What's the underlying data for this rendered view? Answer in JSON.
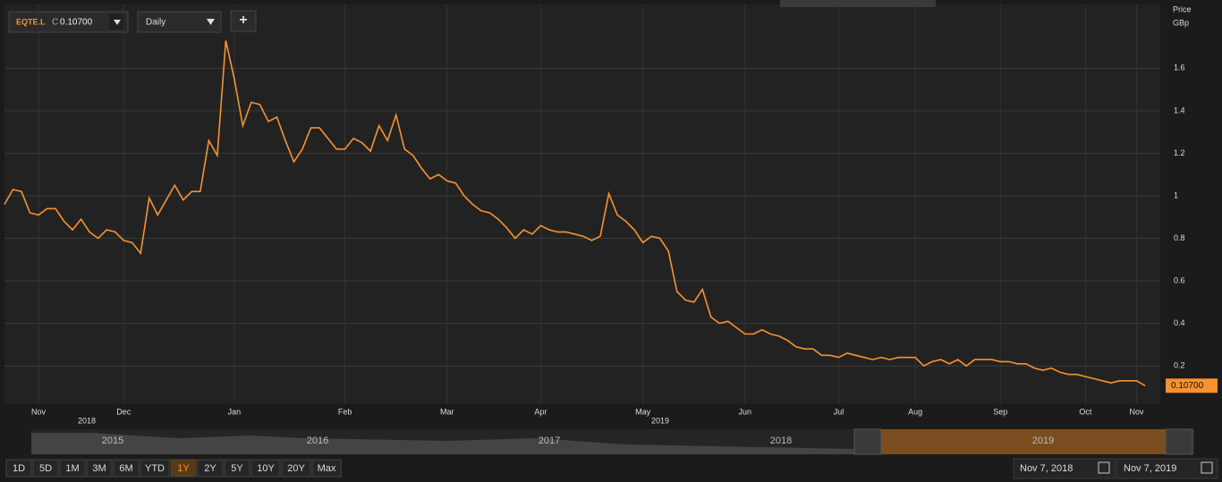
{
  "toolbar": {
    "ticker": "EQTE.L",
    "close_prefix": "C",
    "close": "0.10700",
    "interval": "Daily",
    "add": "+"
  },
  "chart_data": {
    "type": "line",
    "y_axis_label": [
      "Price",
      "GBp"
    ],
    "categories": [
      null,
      null,
      null,
      null,
      "Nov",
      null,
      null,
      null,
      null,
      null,
      null,
      null,
      null,
      null,
      "Dec",
      null,
      null,
      null,
      null,
      null,
      null,
      null,
      null,
      null,
      null,
      null,
      null,
      "Jan",
      null,
      null,
      null,
      null,
      null,
      null,
      null,
      null,
      null,
      null,
      null,
      null,
      "Feb",
      null,
      null,
      null,
      null,
      null,
      null,
      null,
      null,
      null,
      null,
      null,
      "Mar",
      null,
      null,
      null,
      null,
      null,
      null,
      null,
      null,
      null,
      null,
      "Apr",
      null,
      null,
      null,
      null,
      null,
      null,
      null,
      null,
      null,
      null,
      null,
      "May",
      null,
      null,
      null,
      null,
      null,
      null,
      null,
      null,
      null,
      null,
      null,
      "Jun",
      null,
      null,
      null,
      null,
      null,
      null,
      null,
      null,
      null,
      null,
      "Jul",
      null,
      null,
      null,
      null,
      null,
      null,
      null,
      null,
      "Aug",
      null,
      null,
      null,
      null,
      null,
      null,
      null,
      null,
      null,
      "Sep",
      null,
      null,
      null,
      null,
      null,
      null,
      null,
      null,
      null,
      "Oct",
      null,
      null,
      null,
      null,
      null,
      "Nov",
      null
    ],
    "year_labels": [
      "2018",
      "2019"
    ],
    "series": [
      {
        "color": "#f7922f",
        "values": [
          0.96,
          1.03,
          1.02,
          0.92,
          0.91,
          0.94,
          0.94,
          0.88,
          0.84,
          0.89,
          0.83,
          0.8,
          0.84,
          0.83,
          0.79,
          0.78,
          0.73,
          0.99,
          0.91,
          0.98,
          1.05,
          0.98,
          1.02,
          1.02,
          1.26,
          1.19,
          1.73,
          1.55,
          1.33,
          1.44,
          1.43,
          1.35,
          1.37,
          1.26,
          1.16,
          1.22,
          1.32,
          1.32,
          1.27,
          1.22,
          1.22,
          1.27,
          1.25,
          1.21,
          1.33,
          1.26,
          1.38,
          1.22,
          1.19,
          1.13,
          1.08,
          1.1,
          1.07,
          1.06,
          1.0,
          0.96,
          0.93,
          0.92,
          0.89,
          0.85,
          0.8,
          0.84,
          0.82,
          0.86,
          0.84,
          0.83,
          0.83,
          0.82,
          0.81,
          0.79,
          0.81,
          1.01,
          0.91,
          0.88,
          0.84,
          0.78,
          0.81,
          0.8,
          0.74,
          0.55,
          0.51,
          0.5,
          0.56,
          0.43,
          0.4,
          0.41,
          0.38,
          0.35,
          0.35,
          0.37,
          0.35,
          0.34,
          0.32,
          0.29,
          0.28,
          0.28,
          0.25,
          0.25,
          0.24,
          0.26,
          0.25,
          0.24,
          0.23,
          0.24,
          0.23,
          0.24,
          0.24,
          0.24,
          0.2,
          0.22,
          0.23,
          0.21,
          0.23,
          0.2,
          0.23,
          0.23,
          0.23,
          0.22,
          0.22,
          0.21,
          0.21,
          0.19,
          0.18,
          0.19,
          0.17,
          0.16,
          0.16,
          0.15,
          0.14,
          0.13,
          0.12,
          0.13,
          0.13,
          0.13,
          0.107
        ]
      }
    ],
    "last_price_label": "0.10700",
    "ylim": [
      0.02,
      1.9
    ],
    "yticks": [
      0.2,
      0.4,
      0.6,
      0.8,
      1.0,
      1.2,
      1.4,
      1.6
    ],
    "grid": true
  },
  "navigator": {
    "years": [
      "2015",
      "2016",
      "2017",
      "2018",
      "2019"
    ]
  },
  "range_buttons": [
    {
      "label": "1D"
    },
    {
      "label": "5D"
    },
    {
      "label": "1M"
    },
    {
      "label": "3M"
    },
    {
      "label": "6M"
    },
    {
      "label": "YTD"
    },
    {
      "label": "1Y",
      "active": true
    },
    {
      "label": "2Y"
    },
    {
      "label": "5Y"
    },
    {
      "label": "10Y"
    },
    {
      "label": "20Y"
    },
    {
      "label": "Max"
    }
  ],
  "date_range": {
    "from": "Nov 7, 2018",
    "to": "Nov 7, 2019"
  }
}
